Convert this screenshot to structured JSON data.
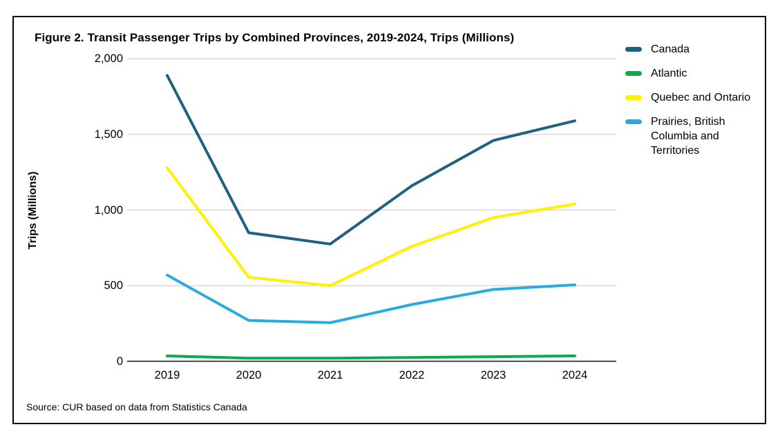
{
  "figure": {
    "title": "Figure 2. Transit Passenger Trips by Combined Provinces, 2019-2024, Trips (Millions)",
    "source": "Source: CUR based on data from Statistics Canada"
  },
  "chart_data": {
    "type": "line",
    "title": "Figure 2. Transit Passenger Trips by Combined Provinces, 2019-2024, Trips (Millions)",
    "xlabel": "",
    "ylabel": "Trips (Millions)",
    "categories": [
      "2019",
      "2020",
      "2021",
      "2022",
      "2023",
      "2024"
    ],
    "ylim": [
      0,
      2000
    ],
    "yticks": [
      0,
      500,
      1000,
      1500,
      2000
    ],
    "ytick_labels": [
      "0",
      "500",
      "1,000",
      "1,500",
      "2,000"
    ],
    "grid": true,
    "legend_position": "right",
    "axis_color": "#4a4a4a",
    "gridline_color": "#c8c8c8",
    "series": [
      {
        "name": "Canada",
        "color": "#20617f",
        "values": [
          1890,
          850,
          775,
          1160,
          1460,
          1590
        ]
      },
      {
        "name": "Atlantic",
        "color": "#0ca94e",
        "values": [
          35,
          20,
          20,
          25,
          30,
          35
        ]
      },
      {
        "name": "Quebec and Ontario",
        "color": "#fff200",
        "values": [
          1280,
          555,
          500,
          760,
          950,
          1040
        ]
      },
      {
        "name": "Prairies, British Columbia and Territories",
        "color": "#29abe2",
        "values": [
          570,
          270,
          255,
          375,
          475,
          505
        ]
      }
    ]
  }
}
